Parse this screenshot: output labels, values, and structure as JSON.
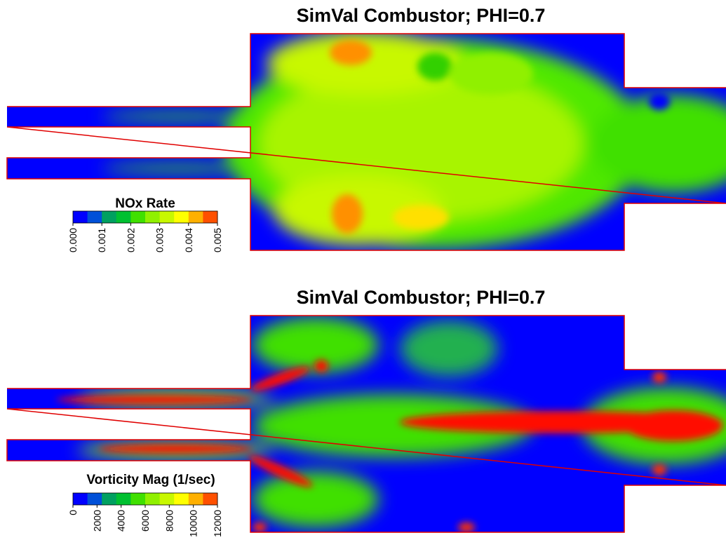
{
  "colormap": [
    "#0000ff",
    "#0050d8",
    "#00a060",
    "#00c030",
    "#40e000",
    "#90f000",
    "#c8f800",
    "#ffff00",
    "#ffb000",
    "#ff5000"
  ],
  "panels": [
    {
      "title": "SimVal Combustor;  PHI=0.7",
      "colorbar_label": "NOx Rate",
      "ticks": [
        "0.000",
        "0.001",
        "0.002",
        "0.003",
        "0.004",
        "0.005"
      ]
    },
    {
      "title": "SimVal Combustor;  PHI=0.7",
      "colorbar_label": "Vorticity Mag (1/sec)",
      "ticks": [
        "0",
        "2000",
        "4000",
        "6000",
        "8000",
        "10000",
        "12000"
      ]
    }
  ]
}
